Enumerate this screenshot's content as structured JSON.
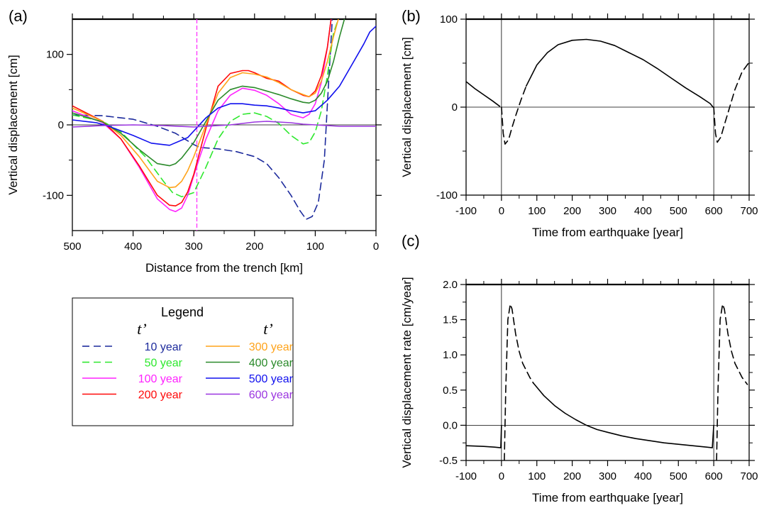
{
  "chart_data": [
    {
      "panel_label": "(a)",
      "type": "line",
      "xlabel": "Distance from the trench [km]",
      "ylabel": "Vertical displacement [cm]",
      "xlim": [
        500,
        0
      ],
      "x_reversed": true,
      "ylim": [
        -150,
        150
      ],
      "xticks": [
        500,
        400,
        300,
        200,
        100,
        0
      ],
      "yticks": [
        -100,
        0,
        100
      ],
      "minor_xticks": [
        450,
        350,
        250,
        150,
        50
      ],
      "minor_yticks": [
        -50,
        50
      ],
      "zero_line": true,
      "vertical_marker": {
        "x": 295,
        "color": "#ff33ff",
        "style": "dashed"
      },
      "legend": {
        "title": "Legend",
        "column_headers": [
          "t’",
          "t’"
        ],
        "placement": "below plot"
      },
      "series": [
        {
          "name": "10 year",
          "color": "#1c2a9c",
          "style": "dashed",
          "x": [
            500,
            450,
            400,
            360,
            330,
            300,
            290,
            260,
            230,
            200,
            180,
            160,
            140,
            125,
            115,
            105,
            95,
            85,
            78,
            72
          ],
          "y": [
            14,
            13,
            8,
            -2,
            -12,
            -28,
            -32,
            -34,
            -38,
            -45,
            -55,
            -75,
            -100,
            -122,
            -134,
            -130,
            -110,
            -50,
            60,
            150
          ]
        },
        {
          "name": "50 year",
          "color": "#2ee82e",
          "style": "dashed",
          "x": [
            500,
            450,
            420,
            380,
            350,
            335,
            320,
            300,
            280,
            260,
            240,
            220,
            200,
            180,
            160,
            140,
            120,
            110,
            100,
            90,
            80,
            70,
            62
          ],
          "y": [
            14,
            5,
            -10,
            -45,
            -80,
            -96,
            -102,
            -96,
            -60,
            -20,
            5,
            15,
            17,
            12,
            2,
            -15,
            -27,
            -25,
            -10,
            20,
            70,
            130,
            150
          ]
        },
        {
          "name": "100 year",
          "color": "#ff22ff",
          "style": "solid",
          "x": [
            500,
            450,
            420,
            390,
            360,
            340,
            330,
            320,
            310,
            300,
            290,
            280,
            260,
            240,
            220,
            200,
            180,
            160,
            140,
            120,
            110,
            100,
            90,
            80,
            74
          ],
          "y": [
            20,
            3,
            -20,
            -60,
            -105,
            -120,
            -123,
            -118,
            -100,
            -72,
            -45,
            -20,
            20,
            42,
            52,
            49,
            42,
            30,
            15,
            10,
            15,
            30,
            60,
            110,
            150
          ]
        },
        {
          "name": "200 year",
          "color": "#ff0a0a",
          "style": "solid",
          "x": [
            500,
            450,
            420,
            390,
            360,
            340,
            330,
            320,
            310,
            300,
            280,
            260,
            240,
            220,
            210,
            200,
            180,
            160,
            140,
            120,
            110,
            100,
            90,
            80,
            74
          ],
          "y": [
            27,
            5,
            -20,
            -58,
            -100,
            -114,
            -115,
            -110,
            -95,
            -70,
            -5,
            55,
            73,
            77,
            77,
            74,
            66,
            62,
            50,
            42,
            40,
            48,
            70,
            110,
            150
          ]
        },
        {
          "name": "300 year",
          "color": "#ffa31a",
          "style": "solid",
          "x": [
            500,
            450,
            420,
            390,
            360,
            340,
            330,
            320,
            310,
            300,
            280,
            260,
            240,
            220,
            200,
            180,
            160,
            140,
            120,
            110,
            100,
            90,
            80,
            70,
            62
          ],
          "y": [
            24,
            5,
            -15,
            -45,
            -80,
            -89,
            -88,
            -80,
            -65,
            -45,
            0,
            45,
            67,
            74,
            72,
            68,
            60,
            50,
            43,
            40,
            45,
            62,
            90,
            125,
            150
          ]
        },
        {
          "name": "400 year",
          "color": "#2b8a2b",
          "style": "solid",
          "x": [
            500,
            450,
            420,
            390,
            360,
            340,
            330,
            320,
            300,
            280,
            260,
            240,
            220,
            200,
            180,
            160,
            140,
            120,
            110,
            100,
            90,
            80,
            70,
            60,
            52
          ],
          "y": [
            17,
            4,
            -12,
            -35,
            -55,
            -58,
            -55,
            -47,
            -25,
            5,
            35,
            50,
            55,
            53,
            48,
            43,
            37,
            32,
            31,
            35,
            45,
            62,
            90,
            125,
            150
          ]
        },
        {
          "name": "500 year",
          "color": "#1010ee",
          "style": "solid",
          "x": [
            500,
            460,
            440,
            400,
            370,
            340,
            310,
            280,
            260,
            240,
            220,
            200,
            180,
            160,
            140,
            120,
            100,
            80,
            60,
            40,
            20,
            10,
            0
          ],
          "y": [
            7,
            3,
            -2,
            -15,
            -26,
            -29,
            -18,
            10,
            24,
            30,
            30,
            28,
            27,
            24,
            20,
            17,
            20,
            35,
            55,
            85,
            115,
            132,
            140
          ]
        },
        {
          "name": "600 year",
          "color": "#9b36e0",
          "style": "solid",
          "x": [
            500,
            450,
            400,
            350,
            300,
            280,
            260,
            240,
            220,
            200,
            180,
            160,
            140,
            120,
            100,
            80,
            60,
            40,
            20,
            0
          ],
          "y": [
            -3,
            -1,
            0,
            -1,
            -3,
            -2,
            -1,
            0,
            2,
            4,
            5,
            4,
            3,
            1,
            0,
            -1,
            -2,
            -2,
            -2,
            -2
          ]
        }
      ]
    },
    {
      "panel_label": "(b)",
      "type": "line",
      "xlabel": "Time from earthquake [year]",
      "ylabel": "Vertical displacement [cm]",
      "xlim": [
        -100,
        700
      ],
      "ylim": [
        -100,
        100
      ],
      "xticks": [
        -100,
        0,
        100,
        200,
        300,
        400,
        500,
        600,
        700
      ],
      "yticks": [
        -100,
        0,
        100
      ],
      "minor_xticks": [
        -50,
        50,
        150,
        250,
        350,
        450,
        550,
        650
      ],
      "minor_yticks": [
        -50,
        50
      ],
      "zero_line": true,
      "vertical_lines": [
        0,
        600
      ],
      "series": [
        {
          "style": "solid",
          "color": "#000000",
          "x": [
            -100,
            -75,
            -50,
            -25,
            -5
          ],
          "y": [
            29,
            21,
            14,
            7,
            1
          ]
        },
        {
          "style": "dashed",
          "color": "#000000",
          "x": [
            0,
            5,
            10,
            20,
            30,
            40,
            55,
            70
          ],
          "y": [
            0,
            -30,
            -42,
            -37,
            -23,
            -10,
            8,
            24
          ]
        },
        {
          "style": "solid",
          "color": "#000000",
          "x": [
            70,
            100,
            130,
            160,
            200,
            240,
            280,
            320,
            360,
            400,
            440,
            480,
            520,
            560,
            590,
            598
          ],
          "y": [
            24,
            48,
            62,
            71,
            76,
            77,
            75,
            70,
            62,
            54,
            44,
            33,
            22,
            12,
            4,
            0
          ]
        },
        {
          "style": "dashed",
          "color": "#000000",
          "x": [
            600,
            605,
            610,
            620,
            630,
            645,
            660,
            680,
            700
          ],
          "y": [
            0,
            -30,
            -40,
            -34,
            -20,
            0,
            20,
            40,
            51
          ]
        }
      ]
    },
    {
      "panel_label": "(c)",
      "type": "line",
      "xlabel": "Time from earthquake [year]",
      "ylabel": "Vertical displacement rate [cm/year]",
      "xlim": [
        -100,
        700
      ],
      "ylim": [
        -0.5,
        2.0
      ],
      "xticks": [
        -100,
        0,
        100,
        200,
        300,
        400,
        500,
        600,
        700
      ],
      "yticks": [
        -0.5,
        0.0,
        0.5,
        1.0,
        1.5,
        2.0
      ],
      "minor_xticks": [
        -50,
        50,
        150,
        250,
        350,
        450,
        550,
        650
      ],
      "minor_yticks": [
        -0.25,
        0.25,
        0.75,
        1.25,
        1.75
      ],
      "zero_line": true,
      "vertical_lines": [
        0,
        600
      ],
      "series": [
        {
          "style": "solid",
          "color": "#000000",
          "x": [
            -100,
            -50,
            -20,
            -2,
            0
          ],
          "y": [
            -0.29,
            -0.3,
            -0.31,
            -0.32,
            -0.0
          ]
        },
        {
          "style": "dashed",
          "color": "#000000",
          "x": [
            8,
            12,
            18,
            25,
            30,
            40,
            50,
            60,
            70,
            80,
            90
          ],
          "y": [
            -0.5,
            0.5,
            1.5,
            1.72,
            1.65,
            1.3,
            1.05,
            0.88,
            0.78,
            0.68,
            0.6
          ]
        },
        {
          "style": "solid",
          "color": "#000000",
          "x": [
            90,
            120,
            150,
            180,
            210,
            240,
            270,
            300,
            340,
            380,
            420,
            460,
            500,
            540,
            580,
            596,
            600
          ],
          "y": [
            0.6,
            0.42,
            0.28,
            0.17,
            0.08,
            0.0,
            -0.06,
            -0.1,
            -0.15,
            -0.19,
            -0.22,
            -0.25,
            -0.27,
            -0.29,
            -0.31,
            -0.32,
            0.0
          ]
        },
        {
          "style": "dashed",
          "color": "#000000",
          "x": [
            608,
            612,
            618,
            625,
            630,
            640,
            650,
            660,
            670,
            680,
            695
          ],
          "y": [
            -0.5,
            0.5,
            1.5,
            1.72,
            1.65,
            1.3,
            1.05,
            0.88,
            0.78,
            0.68,
            0.58
          ]
        }
      ]
    }
  ]
}
